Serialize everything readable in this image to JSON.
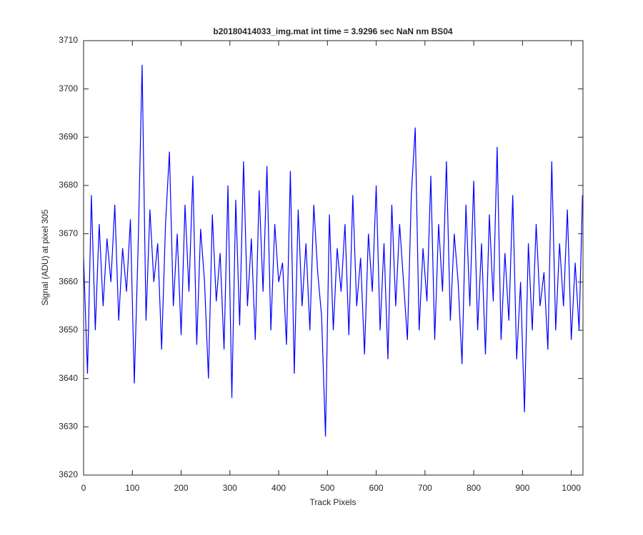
{
  "chart_data": {
    "type": "line",
    "title": "b20180414033_img.mat int time = 3.9296 sec  NaN nm BS04",
    "xlabel": "Track Pixels",
    "ylabel": "Signal (ADU) at pixel 305",
    "xlim": [
      0,
      1024
    ],
    "ylim": [
      3620,
      3710
    ],
    "xticks": [
      0,
      100,
      200,
      300,
      400,
      500,
      600,
      700,
      800,
      900,
      1000
    ],
    "yticks": [
      3620,
      3630,
      3640,
      3650,
      3660,
      3670,
      3680,
      3690,
      3700,
      3710
    ],
    "grid": false,
    "x": [
      0,
      8,
      16,
      24,
      32,
      40,
      48,
      56,
      64,
      72,
      80,
      88,
      96,
      104,
      112,
      120,
      128,
      136,
      144,
      152,
      160,
      168,
      176,
      184,
      192,
      200,
      208,
      216,
      224,
      232,
      240,
      248,
      256,
      264,
      272,
      280,
      288,
      296,
      304,
      312,
      320,
      328,
      336,
      344,
      352,
      360,
      368,
      376,
      384,
      392,
      400,
      408,
      416,
      424,
      432,
      440,
      448,
      456,
      464,
      472,
      480,
      488,
      496,
      504,
      512,
      520,
      528,
      536,
      544,
      552,
      560,
      568,
      576,
      584,
      592,
      600,
      608,
      616,
      624,
      632,
      640,
      648,
      656,
      664,
      672,
      680,
      688,
      696,
      704,
      712,
      720,
      728,
      736,
      744,
      752,
      760,
      768,
      776,
      784,
      792,
      800,
      808,
      816,
      824,
      832,
      840,
      848,
      856,
      864,
      872,
      880,
      888,
      896,
      904,
      912,
      920,
      928,
      936,
      944,
      952,
      960,
      968,
      976,
      984,
      992,
      1000,
      1008,
      1016,
      1023
    ],
    "series": [
      {
        "name": "signal",
        "color": "#0000ff",
        "values": [
          3665,
          3641,
          3678,
          3650,
          3672,
          3655,
          3669,
          3660,
          3676,
          3652,
          3667,
          3658,
          3673,
          3639,
          3668,
          3705,
          3652,
          3675,
          3660,
          3668,
          3646,
          3672,
          3687,
          3655,
          3670,
          3649,
          3676,
          3658,
          3682,
          3647,
          3671,
          3660,
          3640,
          3674,
          3656,
          3666,
          3646,
          3680,
          3636,
          3677,
          3651,
          3685,
          3655,
          3669,
          3648,
          3679,
          3658,
          3684,
          3650,
          3672,
          3660,
          3664,
          3647,
          3683,
          3641,
          3675,
          3655,
          3668,
          3650,
          3676,
          3662,
          3653,
          3628,
          3674,
          3650,
          3667,
          3658,
          3672,
          3649,
          3678,
          3655,
          3665,
          3645,
          3670,
          3658,
          3680,
          3650,
          3668,
          3644,
          3676,
          3655,
          3672,
          3660,
          3648,
          3678,
          3692,
          3650,
          3667,
          3656,
          3682,
          3648,
          3672,
          3658,
          3685,
          3652,
          3670,
          3660,
          3643,
          3676,
          3655,
          3681,
          3650,
          3668,
          3645,
          3674,
          3656,
          3688,
          3648,
          3666,
          3652,
          3678,
          3644,
          3660,
          3633,
          3668,
          3650,
          3672,
          3655,
          3662,
          3646,
          3685,
          3650,
          3668,
          3655,
          3675,
          3648,
          3664,
          3650,
          3678
        ]
      }
    ]
  }
}
